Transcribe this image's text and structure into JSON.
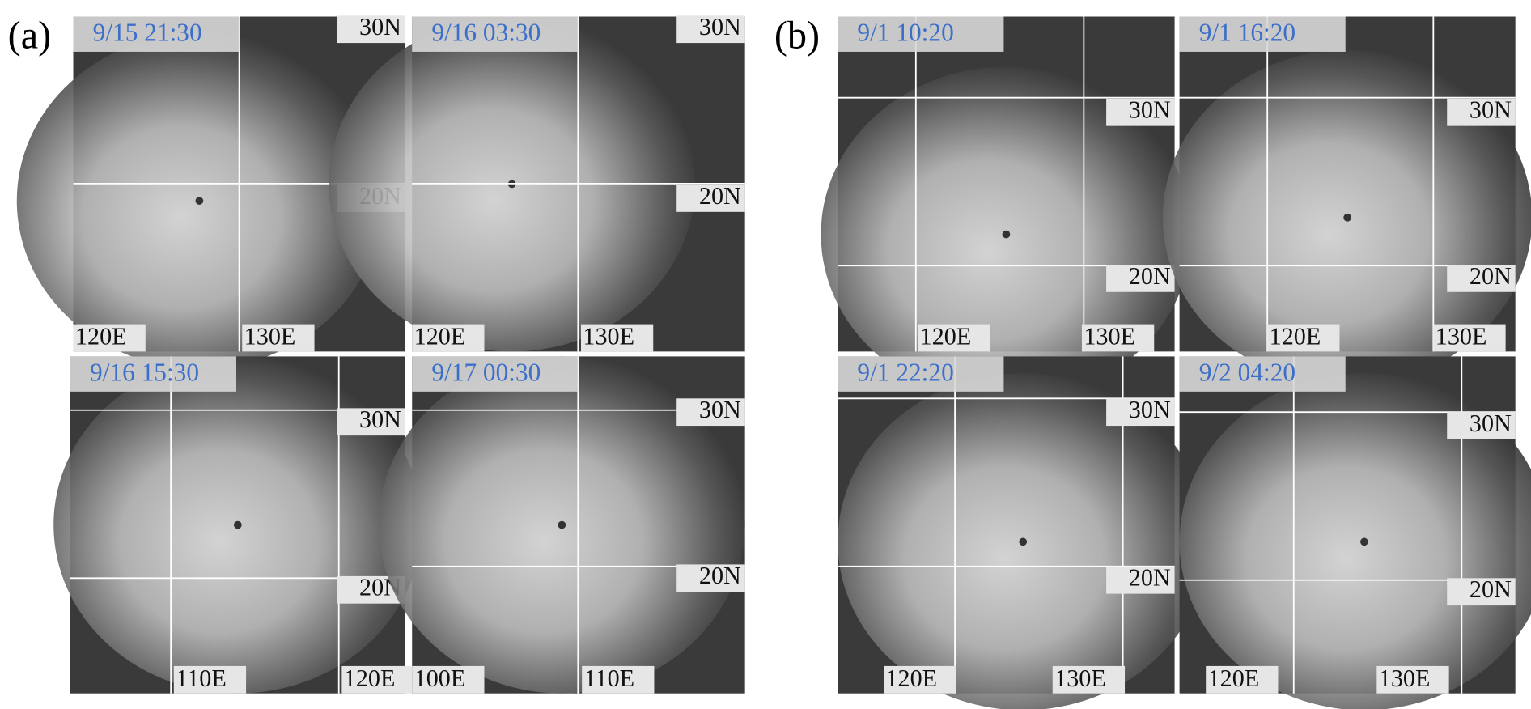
{
  "figure": {
    "panels": [
      {
        "label": "(a)",
        "images": [
          {
            "time": "9/15 21:30",
            "lat_labels": [
              "30N",
              "20N"
            ],
            "lon_labels": [
              "120E",
              "130E"
            ]
          },
          {
            "time": "9/16 03:30",
            "lat_labels": [
              "30N",
              "20N"
            ],
            "lon_labels": [
              "120E",
              "130E"
            ]
          },
          {
            "time": "9/16 15:30",
            "lat_labels": [
              "30N",
              "20N"
            ],
            "lon_labels": [
              "110E",
              "120E"
            ]
          },
          {
            "time": "9/17 00:30",
            "lat_labels": [
              "30N",
              "20N"
            ],
            "lon_labels": [
              "100E",
              "110E"
            ]
          }
        ]
      },
      {
        "label": "(b)",
        "images": [
          {
            "time": "9/1 10:20",
            "lat_labels": [
              "30N",
              "20N"
            ],
            "lon_labels": [
              "120E",
              "130E"
            ]
          },
          {
            "time": "9/1 16:20",
            "lat_labels": [
              "30N",
              "20N"
            ],
            "lon_labels": [
              "120E",
              "130E"
            ]
          },
          {
            "time": "9/1 22:20",
            "lat_labels": [
              "30N",
              "20N"
            ],
            "lon_labels": [
              "120E",
              "130E"
            ]
          },
          {
            "time": "9/2 04:20",
            "lat_labels": [
              "30N",
              "20N"
            ],
            "lon_labels": [
              "120E",
              "130E"
            ]
          }
        ]
      }
    ]
  }
}
